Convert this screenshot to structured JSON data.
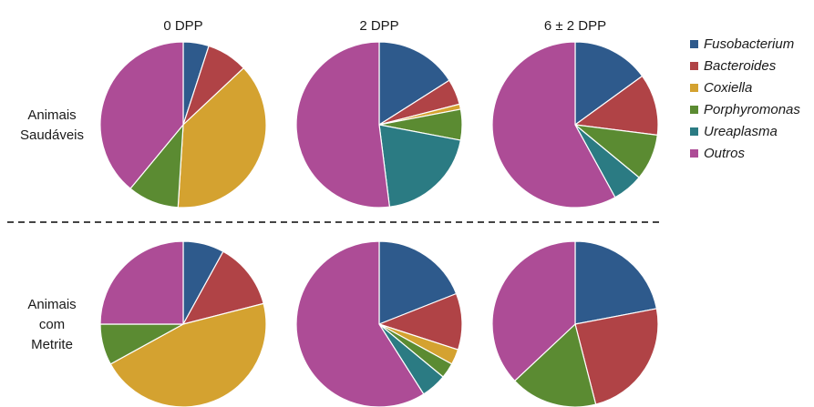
{
  "chart_data": {
    "type": "pie",
    "columns": [
      "0 DPP",
      "2 DPP",
      "6 ± 2 DPP"
    ],
    "rows": [
      {
        "label_lines": [
          "Animais",
          "Saudáveis"
        ]
      },
      {
        "label_lines": [
          "Animais",
          "com",
          "Metrite"
        ]
      }
    ],
    "legend": {
      "placement": "right",
      "entries": [
        {
          "name": "Fusobacterium",
          "color": "#2e5a8c"
        },
        {
          "name": "Bacteroides",
          "color": "#b04346"
        },
        {
          "name": "Coxiella",
          "color": "#d4a230"
        },
        {
          "name": "Porphyromonas",
          "color": "#5b8b32"
        },
        {
          "name": "Ureaplasma",
          "color": "#2b7b83"
        },
        {
          "name": "Outros",
          "color": "#ad4c96"
        }
      ]
    },
    "pies": [
      {
        "row": 0,
        "col": 0,
        "values": [
          5,
          8,
          38,
          10,
          0,
          39
        ]
      },
      {
        "row": 0,
        "col": 1,
        "values": [
          16,
          5,
          1,
          6,
          20,
          52
        ]
      },
      {
        "row": 0,
        "col": 2,
        "values": [
          15,
          12,
          0,
          9,
          6,
          58
        ]
      },
      {
        "row": 1,
        "col": 0,
        "values": [
          8,
          13,
          46,
          8,
          0,
          25
        ]
      },
      {
        "row": 1,
        "col": 1,
        "values": [
          19,
          11,
          3,
          3,
          5,
          59
        ]
      },
      {
        "row": 1,
        "col": 2,
        "values": [
          22,
          24,
          0,
          17,
          0,
          37
        ]
      }
    ],
    "separator": "dashed"
  }
}
